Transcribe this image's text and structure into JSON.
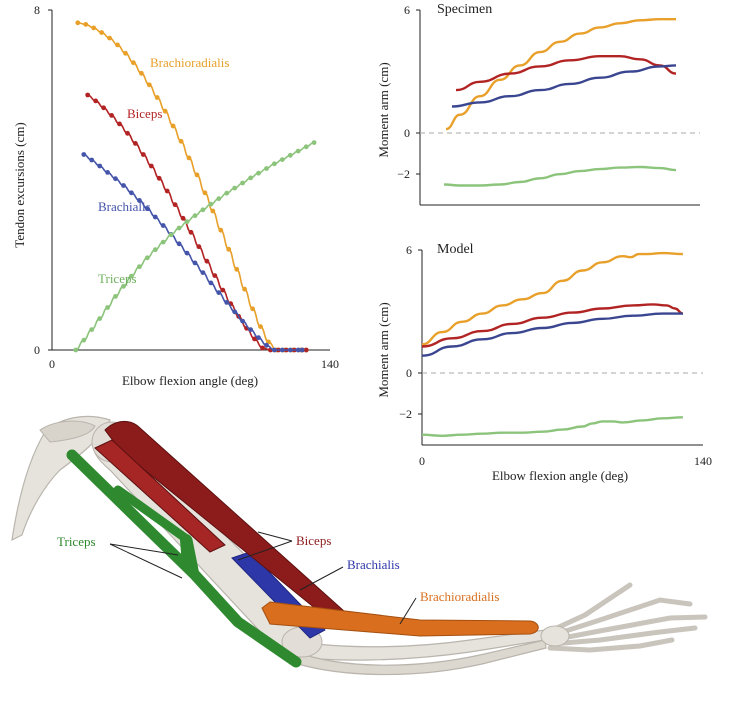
{
  "chart_data": [
    {
      "id": "tendon",
      "type": "line",
      "xlabel": "Elbow flexion angle (deg)",
      "ylabel": "Tendon excursions (cm)",
      "xlim": [
        0,
        140
      ],
      "ylim": [
        0,
        8
      ],
      "xticks": [
        "0",
        "140"
      ],
      "yticks": [
        "0",
        "8"
      ],
      "series": [
        {
          "name": "Brachioradialis",
          "color": "#e8a02a",
          "x": [
            13,
            17,
            21,
            25,
            29,
            33,
            37,
            41,
            45,
            49,
            53,
            57,
            61,
            65,
            69,
            73,
            77,
            81,
            85,
            89,
            93,
            97,
            101,
            105,
            109,
            113,
            117,
            121,
            125,
            128
          ],
          "y": [
            7.7,
            7.66,
            7.58,
            7.47,
            7.34,
            7.18,
            6.98,
            6.76,
            6.51,
            6.24,
            5.94,
            5.62,
            5.27,
            4.91,
            4.52,
            4.12,
            3.7,
            3.27,
            2.82,
            2.37,
            1.9,
            1.43,
            0.97,
            0.55,
            0.19,
            0.0,
            0.0,
            0.0,
            0.0,
            0.0
          ],
          "markers": true
        },
        {
          "name": "Biceps",
          "color": "#b22424",
          "x": [
            18,
            22,
            26,
            30,
            34,
            38,
            42,
            46,
            50,
            54,
            58,
            62,
            66,
            70,
            74,
            78,
            82,
            86,
            90,
            94,
            98,
            102,
            106,
            110,
            114,
            118,
            122,
            126,
            128
          ],
          "y": [
            6.0,
            5.86,
            5.7,
            5.52,
            5.32,
            5.1,
            4.86,
            4.6,
            4.33,
            4.04,
            3.74,
            3.42,
            3.1,
            2.77,
            2.43,
            2.09,
            1.75,
            1.41,
            1.09,
            0.79,
            0.51,
            0.26,
            0.05,
            0.0,
            0.0,
            0.0,
            0.0,
            0.0,
            0.0
          ],
          "markers": true
        },
        {
          "name": "Brachialis",
          "color": "#4455aa",
          "x": [
            16,
            20,
            24,
            28,
            32,
            36,
            40,
            44,
            48,
            52,
            56,
            60,
            64,
            68,
            72,
            76,
            80,
            84,
            88,
            92,
            96,
            100,
            104,
            108,
            112,
            116,
            120,
            124,
            126
          ],
          "y": [
            4.6,
            4.47,
            4.33,
            4.18,
            4.03,
            3.87,
            3.7,
            3.52,
            3.33,
            3.13,
            2.93,
            2.72,
            2.5,
            2.28,
            2.05,
            1.82,
            1.58,
            1.35,
            1.12,
            0.9,
            0.68,
            0.48,
            0.29,
            0.11,
            0.0,
            0.0,
            0.0,
            0.0,
            0.0
          ],
          "markers": true
        },
        {
          "name": "Triceps",
          "color": "#8cc47c",
          "x": [
            12,
            16,
            20,
            24,
            28,
            32,
            36,
            40,
            44,
            48,
            52,
            56,
            60,
            64,
            68,
            72,
            76,
            80,
            84,
            88,
            92,
            96,
            100,
            104,
            108,
            112,
            116,
            120,
            124,
            128,
            132
          ],
          "y": [
            0.0,
            0.23,
            0.48,
            0.74,
            1.0,
            1.26,
            1.5,
            1.74,
            1.96,
            2.17,
            2.36,
            2.54,
            2.71,
            2.87,
            3.02,
            3.16,
            3.3,
            3.43,
            3.56,
            3.69,
            3.81,
            3.93,
            4.05,
            4.16,
            4.27,
            4.38,
            4.48,
            4.58,
            4.68,
            4.78,
            4.88
          ],
          "markers": true
        }
      ]
    },
    {
      "id": "specimen",
      "type": "line",
      "title": "Specimen",
      "ylabel": "Moment arm (cm)",
      "xlim": [
        0,
        140
      ],
      "ylim": [
        -3.5,
        6
      ],
      "yticks": [
        "6",
        "0",
        "−2"
      ],
      "series": [
        {
          "name": "Brachioradialis",
          "color": "#e8a02a",
          "x": [
            13,
            20,
            30,
            40,
            50,
            60,
            70,
            80,
            90,
            100,
            110,
            120,
            128
          ],
          "y": [
            0.2,
            0.9,
            1.8,
            2.6,
            3.3,
            3.95,
            4.45,
            4.85,
            5.15,
            5.35,
            5.5,
            5.55,
            5.55
          ]
        },
        {
          "name": "Biceps",
          "color": "#b22424",
          "x": [
            18,
            30,
            45,
            60,
            75,
            90,
            100,
            110,
            120,
            128
          ],
          "y": [
            2.1,
            2.5,
            2.9,
            3.25,
            3.55,
            3.75,
            3.75,
            3.6,
            3.3,
            2.9
          ]
        },
        {
          "name": "Brachialis",
          "color": "#3b4690",
          "x": [
            16,
            30,
            45,
            60,
            75,
            90,
            105,
            120,
            128
          ],
          "y": [
            1.3,
            1.5,
            1.8,
            2.1,
            2.4,
            2.7,
            3.0,
            3.25,
            3.3
          ]
        },
        {
          "name": "Triceps",
          "color": "#8cc47c",
          "x": [
            12,
            20,
            30,
            40,
            50,
            60,
            70,
            80,
            90,
            100,
            110,
            120,
            128
          ],
          "y": [
            -2.5,
            -2.55,
            -2.55,
            -2.5,
            -2.38,
            -2.2,
            -2.0,
            -1.85,
            -1.75,
            -1.68,
            -1.65,
            -1.7,
            -1.8
          ]
        }
      ]
    },
    {
      "id": "model",
      "type": "line",
      "title": "Model",
      "xlabel": "Elbow flexion angle (deg)",
      "ylabel": "Moment arm (cm)",
      "xlim": [
        0,
        140
      ],
      "ylim": [
        -3.5,
        6
      ],
      "xticks": [
        "0",
        "140"
      ],
      "yticks": [
        "6",
        "0",
        "−2"
      ],
      "series": [
        {
          "name": "Brachioradialis",
          "color": "#e8a02a",
          "x": [
            0,
            10,
            20,
            30,
            40,
            50,
            60,
            70,
            80,
            90,
            100,
            104,
            108,
            112,
            120,
            130
          ],
          "y": [
            1.4,
            2.0,
            2.5,
            2.9,
            3.3,
            3.6,
            3.9,
            4.5,
            5.0,
            5.4,
            5.7,
            5.65,
            5.8,
            5.8,
            5.85,
            5.8
          ]
        },
        {
          "name": "Biceps",
          "color": "#b22424",
          "x": [
            0,
            15,
            30,
            45,
            60,
            75,
            90,
            105,
            115,
            122,
            126,
            130
          ],
          "y": [
            1.3,
            1.7,
            2.05,
            2.4,
            2.7,
            2.95,
            3.15,
            3.3,
            3.35,
            3.3,
            3.15,
            2.9
          ]
        },
        {
          "name": "Brachialis",
          "color": "#3b4690",
          "x": [
            0,
            15,
            30,
            45,
            60,
            75,
            90,
            105,
            120,
            130
          ],
          "y": [
            0.85,
            1.3,
            1.65,
            1.95,
            2.2,
            2.45,
            2.65,
            2.8,
            2.9,
            2.9
          ]
        },
        {
          "name": "Triceps",
          "color": "#8cc47c",
          "x": [
            0,
            10,
            20,
            30,
            40,
            50,
            60,
            70,
            80,
            85,
            90,
            95,
            100,
            110,
            120,
            130
          ],
          "y": [
            -3.0,
            -3.05,
            -3.0,
            -2.95,
            -2.9,
            -2.9,
            -2.85,
            -2.75,
            -2.6,
            -2.45,
            -2.35,
            -2.35,
            -2.4,
            -2.3,
            -2.2,
            -2.15
          ]
        }
      ]
    }
  ],
  "anatomy": {
    "labels": {
      "triceps": "Triceps",
      "biceps": "Biceps",
      "brachialis": "Brachialis",
      "brachioradialis": "Brachioradialis"
    },
    "colors": {
      "bone": "#e6e3dd",
      "bone_shade": "#b9b5ad",
      "triceps": "#2f8a2f",
      "biceps": "#8c1c1c",
      "brachialis": "#2e37a8",
      "brachioradialis": "#d96f1e"
    }
  }
}
